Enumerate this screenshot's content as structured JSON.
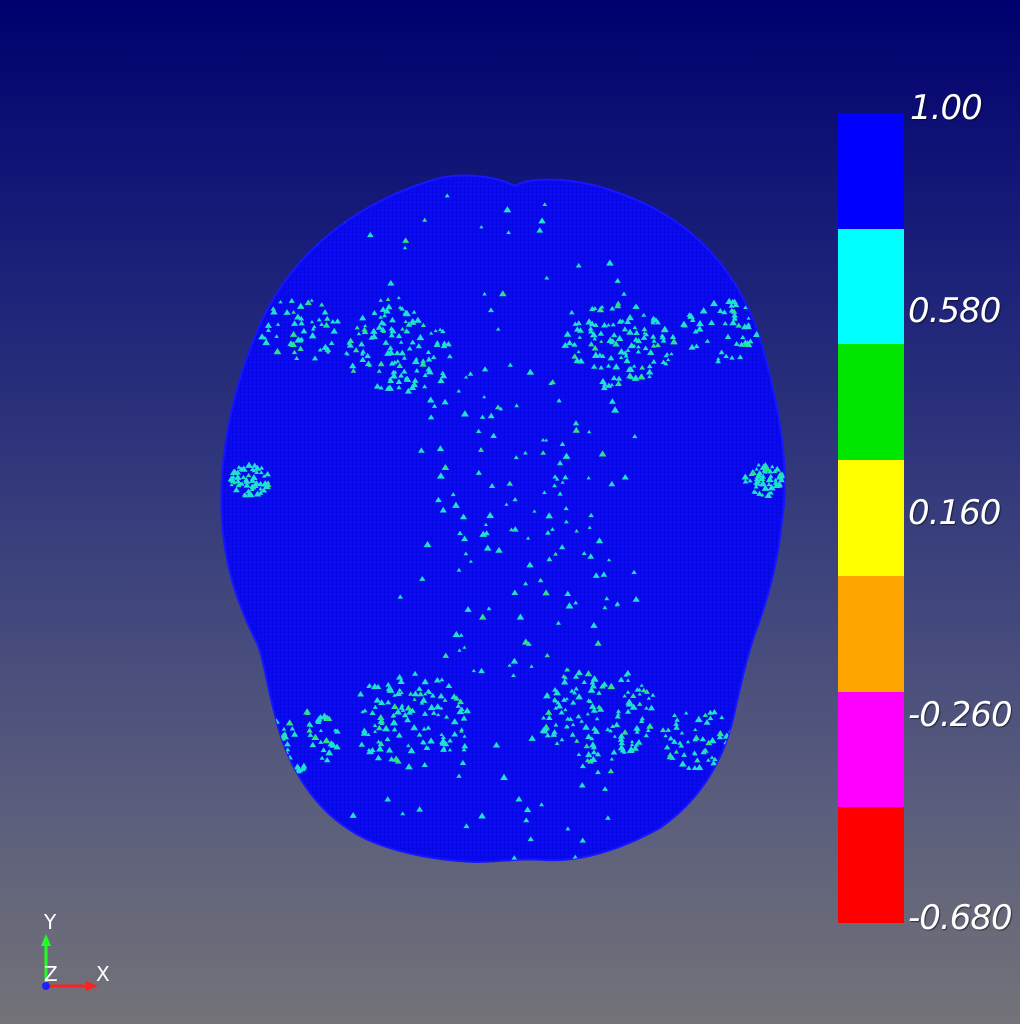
{
  "scene": {
    "background_top": "#00006e",
    "background_bottom": "#737378",
    "mesh_color": "#0a0af5",
    "speckle_color": "#1fe0d2",
    "speckle_alt_color": "#2fe08a"
  },
  "colorbar": {
    "tick_labels": [
      "1.00",
      "0.580",
      "0.160",
      "-0.260",
      "-0.680"
    ],
    "bands": [
      {
        "color": "#0000ff"
      },
      {
        "color": "#00ffff"
      },
      {
        "color": "#00e600"
      },
      {
        "color": "#ffff00"
      },
      {
        "color": "#ffa500"
      },
      {
        "color": "#ff00ff"
      },
      {
        "color": "#ff0000"
      }
    ]
  },
  "axes_triad": {
    "y_label": "Y",
    "z_label": "Z",
    "x_label": "X",
    "x_color": "#ff2020",
    "y_color": "#20ff20",
    "z_color": "#2020ff"
  }
}
